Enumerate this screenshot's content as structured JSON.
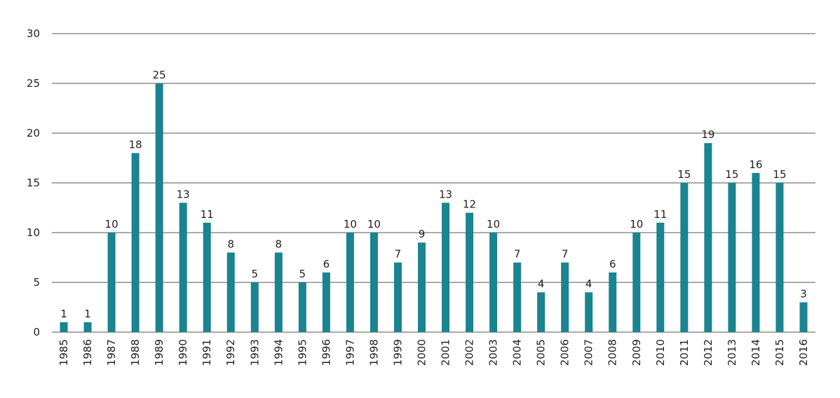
{
  "chart_data": {
    "type": "bar",
    "categories": [
      "1985",
      "1986",
      "1987",
      "1988",
      "1989",
      "1990",
      "1991",
      "1992",
      "1993",
      "1994",
      "1995",
      "1996",
      "1997",
      "1998",
      "1999",
      "2000",
      "2001",
      "2002",
      "2003",
      "2004",
      "2005",
      "2006",
      "2007",
      "2008",
      "2009",
      "2010",
      "2011",
      "2012",
      "2013",
      "2014",
      "2015",
      "2016"
    ],
    "values": [
      1,
      1,
      10,
      18,
      25,
      13,
      11,
      8,
      5,
      8,
      5,
      6,
      10,
      10,
      7,
      9,
      13,
      12,
      10,
      7,
      4,
      7,
      4,
      6,
      10,
      11,
      15,
      19,
      15,
      16,
      15,
      3
    ],
    "color": "#1a8490",
    "ylim": [
      0,
      30
    ],
    "yticks": [
      0,
      5,
      10,
      15,
      20,
      25,
      30
    ],
    "grid": true
  }
}
